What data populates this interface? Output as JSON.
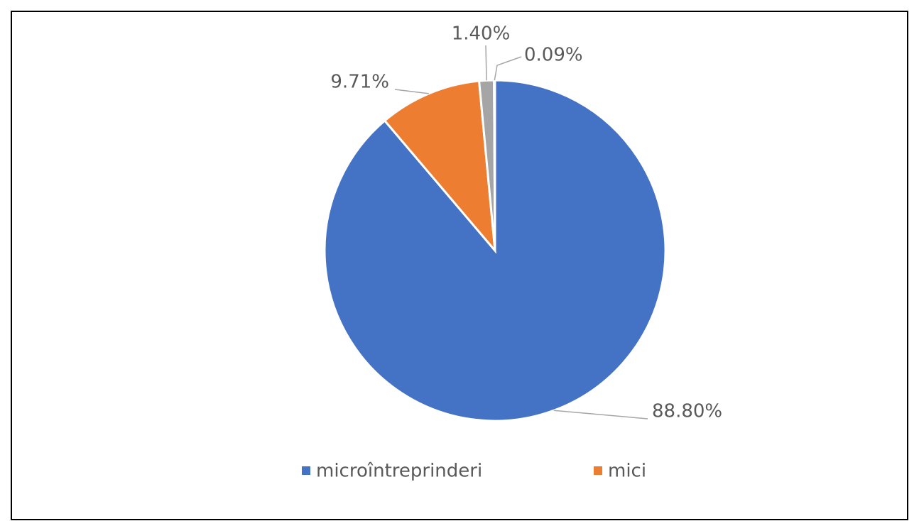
{
  "chart_data": {
    "type": "pie",
    "categories": [
      "microîntreprinderi",
      "mici",
      null,
      null
    ],
    "values": [
      88.8,
      9.71,
      1.4,
      0.09
    ],
    "value_labels": [
      "88.80%",
      "9.71%",
      "1.40%",
      "0.09%"
    ],
    "colors": [
      "#4472c4",
      "#ed7d31",
      "#a5a5a5",
      "#ffc000"
    ],
    "legend": "bottom"
  }
}
